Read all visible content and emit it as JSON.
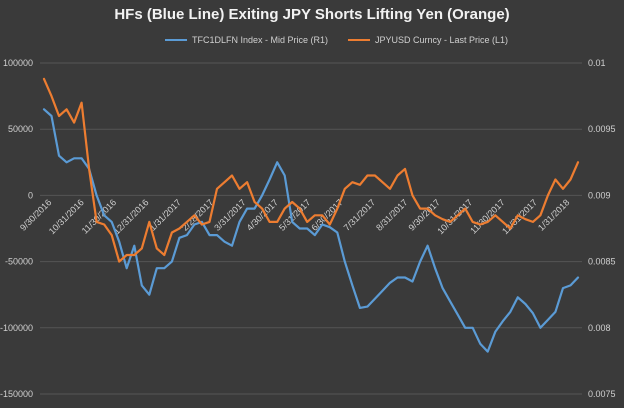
{
  "chart_data": {
    "type": "line",
    "title": "HFs (Blue Line) Exiting JPY Shorts Lifting Yen (Orange)",
    "x_tick_labels": [
      "9/30/2016",
      "10/31/2016",
      "11/30/2016",
      "12/31/2016",
      "1/31/2017",
      "2/28/2017",
      "3/31/2017",
      "4/30/2017",
      "5/31/2017",
      "6/30/2017",
      "7/31/2017",
      "8/31/2017",
      "9/30/2017",
      "10/31/2017",
      "11/30/2017",
      "12/31/2017",
      "1/31/2018"
    ],
    "left_axis": {
      "ticks": [
        "100000",
        "50000",
        "0",
        "-50000",
        "-100000",
        "-150000"
      ],
      "ylim": [
        -150000,
        100000
      ]
    },
    "right_axis": {
      "ticks": [
        "0.01",
        "0.0095",
        "0.009",
        "0.0085",
        "0.008",
        "0.0075"
      ],
      "ylim": [
        0.0075,
        0.01
      ]
    },
    "grid": true,
    "legend_position": "top",
    "series": [
      {
        "name": "TFC1DLFN Index - Mid Price (R1)",
        "axis": "left",
        "color": "#5b9bd5",
        "values": [
          65000,
          60000,
          30000,
          25000,
          28000,
          28000,
          20000,
          0,
          -15000,
          -20000,
          -35000,
          -55000,
          -38000,
          -68000,
          -75000,
          -55000,
          -55000,
          -50000,
          -32000,
          -30000,
          -22000,
          -20000,
          -30000,
          -30000,
          -35000,
          -38000,
          -20000,
          -10000,
          -10000,
          0,
          12000,
          25000,
          15000,
          -20000,
          -25000,
          -25000,
          -30000,
          -22000,
          -24000,
          -28000,
          -50000,
          -68000,
          -85000,
          -84000,
          -78000,
          -72000,
          -66000,
          -62000,
          -62000,
          -65000,
          -50000,
          -38000,
          -55000,
          -70000,
          -80000,
          -90000,
          -100000,
          -100000,
          -112000,
          -118000,
          -103000,
          -95000,
          -88000,
          -77000,
          -82000,
          -89000,
          -100000,
          -94000,
          -88000,
          -70000,
          -68000,
          -62000
        ]
      },
      {
        "name": "JPYUSD Curncy - Last Price (L1)",
        "axis": "right",
        "color": "#ed7d31",
        "values": [
          0.00988,
          0.00975,
          0.0096,
          0.00965,
          0.00955,
          0.0097,
          0.0092,
          0.0088,
          0.00878,
          0.0087,
          0.0085,
          0.00855,
          0.00855,
          0.0086,
          0.0088,
          0.0086,
          0.00855,
          0.00872,
          0.00875,
          0.0088,
          0.00885,
          0.00878,
          0.0088,
          0.00905,
          0.0091,
          0.00915,
          0.00905,
          0.0091,
          0.00895,
          0.0089,
          0.0088,
          0.0088,
          0.0089,
          0.00895,
          0.0089,
          0.0088,
          0.00885,
          0.00885,
          0.00878,
          0.0089,
          0.00905,
          0.0091,
          0.00908,
          0.00915,
          0.00915,
          0.0091,
          0.00905,
          0.00915,
          0.0092,
          0.009,
          0.0089,
          0.0089,
          0.00885,
          0.00882,
          0.0088,
          0.00885,
          0.0089,
          0.0088,
          0.00878,
          0.0088,
          0.00885,
          0.0088,
          0.00875,
          0.00885,
          0.00882,
          0.0088,
          0.00885,
          0.009,
          0.00912,
          0.00905,
          0.00912,
          0.00925
        ]
      }
    ]
  }
}
